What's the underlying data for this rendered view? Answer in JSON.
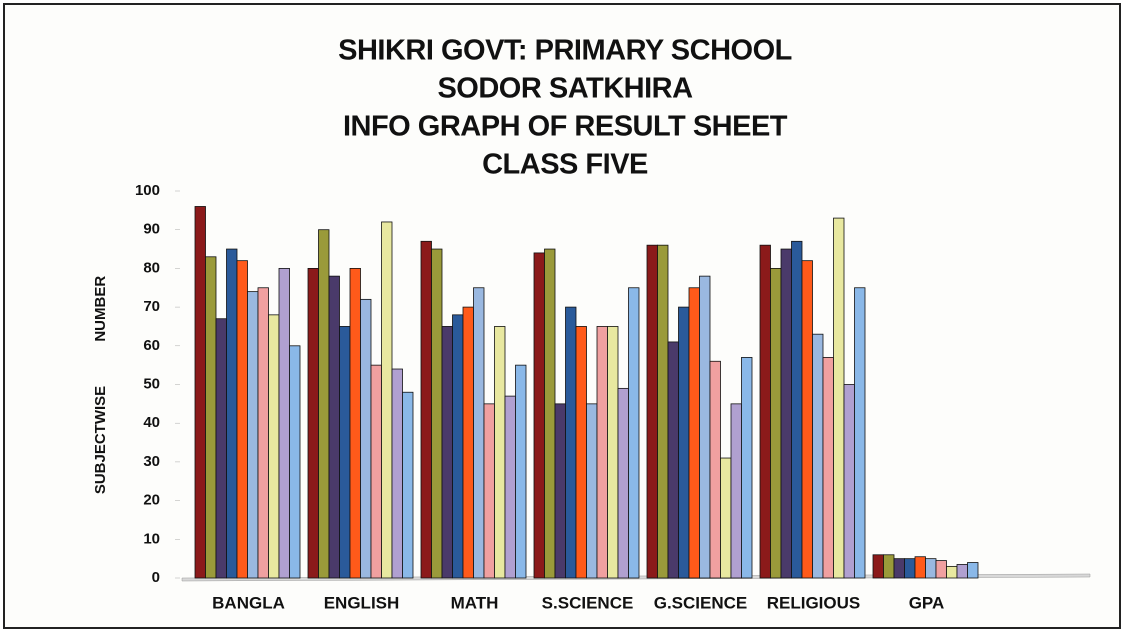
{
  "chart_data": {
    "type": "bar",
    "title": [
      "SHIKRI GOVT: PRIMARY SCHOOL",
      "SODOR SATKHIRA",
      "INFO GRAPH OF RESULT SHEET",
      "CLASS FIVE"
    ],
    "ylabel": "SUBJECTWISE NUMBER",
    "categories": [
      "BANGLA",
      "ENGLISH",
      "MATH",
      "S.SCIENCE",
      "G.SCIENCE",
      "RELIGIOUS",
      "GPA"
    ],
    "series": [
      {
        "color": "#8b1a1a",
        "values": [
          96,
          80,
          87,
          84,
          86,
          86,
          6
        ]
      },
      {
        "color": "#9a9a3a",
        "values": [
          83,
          90,
          85,
          85,
          86,
          80,
          6
        ]
      },
      {
        "color": "#4a3a6a",
        "values": [
          67,
          78,
          65,
          45,
          61,
          85,
          5
        ]
      },
      {
        "color": "#2a5a9a",
        "values": [
          85,
          65,
          68,
          70,
          70,
          87,
          5
        ]
      },
      {
        "color": "#ff5a1a",
        "values": [
          82,
          80,
          70,
          65,
          75,
          82,
          5.5
        ]
      },
      {
        "color": "#9ab8e0",
        "values": [
          74,
          72,
          75,
          45,
          78,
          63,
          5
        ]
      },
      {
        "color": "#f0a0a0",
        "values": [
          75,
          55,
          45,
          65,
          56,
          57,
          4.5
        ]
      },
      {
        "color": "#e8e8a0",
        "values": [
          68,
          92,
          65,
          65,
          31,
          93,
          3
        ]
      },
      {
        "color": "#b0a0d0",
        "values": [
          80,
          54,
          47,
          49,
          45,
          50,
          3.5
        ]
      },
      {
        "color": "#8ab8e8",
        "values": [
          60,
          48,
          55,
          75,
          57,
          75,
          4
        ]
      }
    ],
    "ylim": [
      0,
      100
    ],
    "yticks": [
      0,
      10,
      20,
      30,
      40,
      50,
      60,
      70,
      80,
      90,
      100
    ],
    "grid": false
  }
}
